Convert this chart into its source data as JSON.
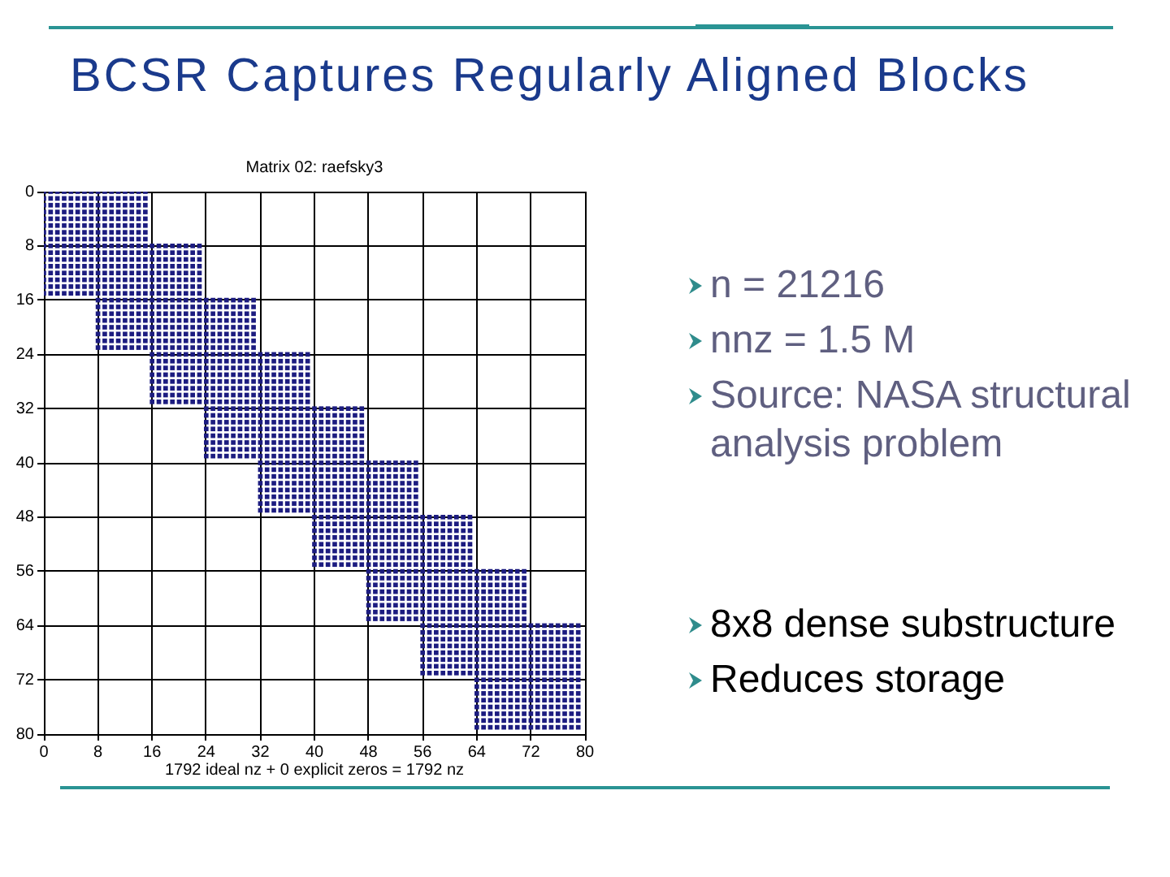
{
  "chart_data": {
    "type": "scatter",
    "title": "BCSR Captures Regularly Aligned Blocks",
    "subtitle": "Matrix 02: raefsky3",
    "xlabel": "1792 ideal nz + 0 explicit zeros = 1792 nz",
    "annotations": [
      "n = 21216",
      "nnz = 1.5 M",
      "Source: NASA structural analysis problem",
      "8x8 dense substructure",
      "Reduces storage"
    ],
    "color": "#1c1c80",
    "marker": "square",
    "grid": true,
    "xlim": [
      0,
      80
    ],
    "ylim": [
      80,
      0
    ],
    "xticks": [
      0,
      8,
      16,
      24,
      32,
      40,
      48,
      56,
      64,
      72,
      80
    ],
    "yticks": [
      0,
      8,
      16,
      24,
      32,
      40,
      48,
      56,
      64,
      72,
      80
    ],
    "x": [
      0,
      1,
      2,
      3,
      4,
      5,
      6,
      7,
      8,
      9,
      10,
      11,
      12,
      13,
      14,
      15,
      0,
      1,
      2,
      3,
      4,
      5,
      6,
      7,
      8,
      9,
      10,
      11,
      12,
      13,
      14,
      15,
      0,
      1,
      2,
      3,
      4,
      5,
      6,
      7,
      8,
      9,
      10,
      11,
      12,
      13,
      14,
      15,
      0,
      1,
      2,
      3,
      4,
      5,
      6,
      7,
      8,
      9,
      10,
      11,
      12,
      13,
      14,
      15,
      0,
      1,
      2,
      3,
      4,
      5,
      6,
      7,
      8,
      9,
      10,
      11,
      12,
      13,
      14,
      15,
      0,
      1,
      2,
      3,
      4,
      5,
      6,
      7,
      8,
      9,
      10,
      11,
      12,
      13,
      14,
      15,
      0,
      1,
      2,
      3,
      4,
      5,
      6,
      7,
      8,
      9,
      10,
      11,
      12,
      13,
      14,
      15,
      0,
      1,
      2,
      3,
      4,
      5,
      6,
      7,
      8,
      9,
      10,
      11,
      12,
      13,
      14,
      15,
      0,
      1,
      2,
      3,
      4,
      5,
      6,
      7,
      8,
      9,
      10,
      11,
      12,
      13,
      14,
      15,
      16,
      17,
      18,
      19,
      20,
      21,
      22,
      23,
      0,
      1,
      2,
      3,
      4,
      5,
      6,
      7,
      8,
      9,
      10,
      11,
      12,
      13,
      14,
      15,
      16,
      17,
      18,
      19,
      20,
      21,
      22,
      23,
      0,
      1,
      2,
      3,
      4,
      5,
      6,
      7,
      8,
      9,
      10,
      11,
      12,
      13,
      14,
      15,
      16,
      17,
      18,
      19,
      20,
      21,
      22,
      23,
      0,
      1,
      2,
      3,
      4,
      5,
      6,
      7,
      8,
      9,
      10,
      11,
      12,
      13,
      14,
      15,
      16,
      17,
      18,
      19,
      20,
      21,
      22,
      23,
      0,
      1,
      2,
      3,
      4,
      5,
      6,
      7,
      8,
      9,
      10,
      11,
      12,
      13,
      14,
      15,
      16,
      17,
      18,
      19,
      20,
      21,
      22,
      23,
      0,
      1,
      2,
      3,
      4,
      5,
      6,
      7,
      8,
      9,
      10,
      11,
      12,
      13,
      14,
      15,
      16,
      17,
      18,
      19,
      20,
      21,
      22,
      23,
      0,
      1,
      2,
      3,
      4,
      5,
      6,
      7,
      8,
      9,
      10,
      11,
      12,
      13,
      14,
      15,
      16,
      17,
      18,
      19,
      20,
      21,
      22,
      23,
      0,
      1,
      2,
      3,
      4,
      5,
      6,
      7,
      8,
      9,
      10,
      11,
      12,
      13,
      14,
      15,
      16,
      17,
      18,
      19,
      20,
      21,
      22,
      23,
      8,
      9,
      10,
      11,
      12,
      13,
      14,
      15,
      16,
      17,
      18,
      19,
      20,
      21,
      22,
      23,
      24,
      25,
      26,
      27,
      28,
      29,
      30,
      31,
      8,
      9,
      10,
      11,
      12,
      13,
      14,
      15,
      16,
      17,
      18,
      19,
      20,
      21,
      22,
      23,
      24,
      25,
      26,
      27,
      28,
      29,
      30,
      31,
      8,
      9,
      10,
      11,
      12,
      13,
      14,
      15,
      16,
      17,
      18,
      19,
      20,
      21,
      22,
      23,
      24,
      25,
      26,
      27,
      28,
      29,
      30,
      31,
      8,
      9,
      10,
      11,
      12,
      13,
      14,
      15,
      16,
      17,
      18,
      19,
      20,
      21,
      22,
      23,
      24,
      25,
      26,
      27,
      28,
      29,
      30,
      31,
      8,
      9,
      10,
      11,
      12,
      13,
      14,
      15,
      16,
      17,
      18,
      19,
      20,
      21,
      22,
      23,
      24,
      25,
      26,
      27,
      28,
      29,
      30,
      31,
      8,
      9,
      10,
      11,
      12,
      13,
      14,
      15,
      16,
      17,
      18,
      19,
      20,
      21,
      22,
      23,
      24,
      25,
      26,
      27,
      28,
      29,
      30,
      31,
      8,
      9,
      10,
      11,
      12,
      13,
      14,
      15,
      16,
      17,
      18,
      19,
      20,
      21,
      22,
      23,
      24,
      25,
      26,
      27,
      28,
      29,
      30,
      31,
      8,
      9,
      10,
      11,
      12,
      13,
      14,
      15,
      16,
      17,
      18,
      19,
      20,
      21,
      22,
      23,
      24,
      25,
      26,
      27,
      28,
      29,
      30,
      31,
      16,
      17,
      18,
      19,
      20,
      21,
      22,
      23,
      24,
      25,
      26,
      27,
      28,
      29,
      30,
      31,
      32,
      33,
      34,
      35,
      36,
      37,
      38,
      39,
      16,
      17,
      18,
      19,
      20,
      21,
      22,
      23,
      24,
      25,
      26,
      27,
      28,
      29,
      30,
      31,
      32,
      33,
      34,
      35,
      36,
      37,
      38,
      39,
      16,
      17,
      18,
      19,
      20,
      21,
      22,
      23,
      24,
      25,
      26,
      27,
      28,
      29,
      30,
      31,
      32,
      33,
      34,
      35,
      36,
      37,
      38,
      39,
      16,
      17,
      18,
      19,
      20,
      21,
      22,
      23,
      24,
      25,
      26,
      27,
      28,
      29,
      30,
      31,
      32,
      33,
      34,
      35,
      36,
      37,
      38,
      39,
      16,
      17,
      18,
      19,
      20,
      21,
      22,
      23,
      24,
      25,
      26,
      27,
      28,
      29,
      30,
      31,
      32,
      33,
      34,
      35,
      36,
      37,
      38,
      39,
      16,
      17,
      18,
      19,
      20,
      21,
      22,
      23,
      24,
      25,
      26,
      27,
      28,
      29,
      30,
      31,
      32,
      33,
      34,
      35,
      36,
      37,
      38,
      39,
      16,
      17,
      18,
      19,
      20,
      21,
      22,
      23,
      24,
      25,
      26,
      27,
      28,
      29,
      30,
      31,
      32,
      33,
      34,
      35,
      36,
      37,
      38,
      39,
      16,
      17,
      18,
      19,
      20,
      21,
      22,
      23,
      24,
      25,
      26,
      27,
      28,
      29,
      30,
      31,
      32,
      33,
      34,
      35,
      36,
      37,
      38,
      39,
      24,
      25,
      26,
      27,
      28,
      29,
      30,
      31,
      32,
      33,
      34,
      35,
      36,
      37,
      38,
      39,
      40,
      41,
      42,
      43,
      44,
      45,
      46,
      47,
      24,
      25,
      26,
      27,
      28,
      29,
      30,
      31,
      32,
      33,
      34,
      35,
      36,
      37,
      38,
      39,
      40,
      41,
      42,
      43,
      44,
      45,
      46,
      47,
      24,
      25,
      26,
      27,
      28,
      29,
      30,
      31,
      32,
      33,
      34,
      35,
      36,
      37,
      38,
      39,
      40,
      41,
      42,
      43,
      44,
      45,
      46,
      47,
      24,
      25,
      26,
      27,
      28,
      29,
      30,
      31,
      32,
      33,
      34,
      35,
      36,
      37,
      38,
      39,
      40,
      41,
      42,
      43,
      44,
      45,
      46,
      47,
      24,
      25,
      26,
      27,
      28,
      29,
      30,
      31,
      32,
      33,
      34,
      35,
      36,
      37,
      38,
      39,
      40,
      41,
      42,
      43,
      44,
      45,
      46,
      47,
      24,
      25,
      26,
      27,
      28,
      29,
      30,
      31,
      32,
      33,
      34,
      35,
      36,
      37,
      38,
      39,
      40,
      41,
      42,
      43,
      44,
      45,
      46,
      47,
      24,
      25,
      26,
      27,
      28,
      29,
      30,
      31,
      32,
      33,
      34,
      35,
      36,
      37,
      38,
      39,
      40,
      41,
      42,
      43,
      44,
      45,
      46,
      47,
      24,
      25,
      26,
      27,
      28,
      29,
      30,
      31,
      32,
      33,
      34,
      35,
      36,
      37,
      38,
      39,
      40,
      41,
      42,
      43,
      44,
      45,
      46,
      47,
      32,
      33,
      34,
      35,
      36,
      37,
      38,
      39,
      40,
      41,
      42,
      43,
      44,
      45,
      46,
      47,
      48,
      49,
      50,
      51,
      52,
      53,
      54,
      55,
      32,
      33,
      34,
      35,
      36,
      37,
      38,
      39,
      40,
      41,
      42,
      43,
      44,
      45,
      46,
      47,
      48,
      49,
      50,
      51,
      52,
      53,
      54,
      55,
      32,
      33,
      34,
      35,
      36,
      37,
      38,
      39,
      40,
      41,
      42,
      43,
      44,
      45,
      46,
      47,
      48,
      49,
      50,
      51,
      52,
      53,
      54,
      55,
      32,
      33,
      34,
      35,
      36,
      37,
      38,
      39,
      40,
      41,
      42,
      43,
      44,
      45,
      46,
      47,
      48,
      49,
      50,
      51,
      52,
      53,
      54,
      55,
      32,
      33,
      34,
      35,
      36,
      37,
      38,
      39,
      40,
      41,
      42,
      43,
      44,
      45,
      46,
      47,
      48,
      49,
      50,
      51,
      52,
      53,
      54,
      55,
      32,
      33,
      34,
      35,
      36,
      37,
      38,
      39,
      40,
      41,
      42,
      43,
      44,
      45,
      46,
      47,
      48,
      49,
      50,
      51,
      52,
      53,
      54,
      55,
      32,
      33,
      34,
      35,
      36,
      37,
      38,
      39,
      40,
      41,
      42,
      43,
      44,
      45,
      46,
      47,
      48,
      49,
      50,
      51,
      52,
      53,
      54,
      55,
      32,
      33,
      34,
      35,
      36,
      37,
      38,
      39,
      40,
      41,
      42,
      43,
      44,
      45,
      46,
      47,
      48,
      49,
      50,
      51,
      52,
      53,
      54,
      55,
      40,
      41,
      42,
      43,
      44,
      45,
      46,
      47,
      48,
      49,
      50,
      51,
      52,
      53,
      54,
      55,
      56,
      57,
      58,
      59,
      60,
      61,
      62,
      63,
      40,
      41,
      42,
      43,
      44,
      45,
      46,
      47,
      48,
      49,
      50,
      51,
      52,
      53,
      54,
      55,
      56,
      57,
      58,
      59,
      60,
      61,
      62,
      63,
      40,
      41,
      42,
      43,
      44,
      45,
      46,
      47,
      48,
      49,
      50,
      51,
      52,
      53,
      54,
      55,
      56,
      57,
      58,
      59,
      60,
      61,
      62,
      63,
      40,
      41,
      42,
      43,
      44,
      45,
      46,
      47,
      48,
      49,
      50,
      51,
      52,
      53,
      54,
      55,
      56,
      57,
      58,
      59,
      60,
      61,
      62,
      63,
      40,
      41,
      42,
      43,
      44,
      45,
      46,
      47,
      48,
      49,
      50,
      51,
      52,
      53,
      54,
      55,
      56,
      57,
      58,
      59,
      60,
      61,
      62,
      63,
      40,
      41,
      42,
      43,
      44,
      45,
      46,
      47,
      48,
      49,
      50,
      51,
      52,
      53,
      54,
      55,
      56,
      57,
      58,
      59,
      60,
      61,
      62,
      63,
      40,
      41,
      42,
      43,
      44,
      45,
      46,
      47,
      48,
      49,
      50,
      51,
      52,
      53,
      54,
      55,
      56,
      57,
      58,
      59,
      60,
      61,
      62,
      63,
      40,
      41,
      42,
      43,
      44,
      45,
      46,
      47,
      48,
      49,
      50,
      51,
      52,
      53,
      54,
      55,
      56,
      57,
      58,
      59,
      60,
      61,
      62,
      63,
      48,
      49,
      50,
      51,
      52,
      53,
      54,
      55,
      56,
      57,
      58,
      59,
      60,
      61,
      62,
      63,
      64,
      65,
      66,
      67,
      68,
      69,
      70,
      71,
      48,
      49,
      50,
      51,
      52,
      53,
      54,
      55,
      56,
      57,
      58,
      59,
      60,
      61,
      62,
      63,
      64,
      65,
      66,
      67,
      68,
      69,
      70,
      71,
      48,
      49,
      50,
      51,
      52,
      53,
      54,
      55,
      56,
      57,
      58,
      59,
      60,
      61,
      62,
      63,
      64,
      65,
      66,
      67,
      68,
      69,
      70,
      71,
      48,
      49,
      50,
      51,
      52,
      53,
      54,
      55,
      56,
      57,
      58,
      59,
      60,
      61,
      62,
      63,
      64,
      65,
      66,
      67,
      68,
      69,
      70,
      71,
      48,
      49,
      50,
      51,
      52,
      53,
      54,
      55,
      56,
      57,
      58,
      59,
      60,
      61,
      62,
      63,
      64,
      65,
      66,
      67,
      68,
      69,
      70,
      71,
      48,
      49,
      50,
      51,
      52,
      53,
      54,
      55,
      56,
      57,
      58,
      59,
      60,
      61,
      62,
      63,
      64,
      65,
      66,
      67,
      68,
      69,
      70,
      71,
      48,
      49,
      50,
      51,
      52,
      53,
      54,
      55,
      56,
      57,
      58,
      59,
      60,
      61,
      62,
      63,
      64,
      65,
      66,
      67,
      68,
      69,
      70,
      71,
      48,
      49,
      50,
      51,
      52,
      53,
      54,
      55,
      56,
      57,
      58,
      59,
      60,
      61,
      62,
      63,
      64,
      65,
      66,
      67,
      68,
      69,
      70,
      71,
      56,
      57,
      58,
      59,
      60,
      61,
      62,
      63,
      64,
      65,
      66,
      67,
      68,
      69,
      70,
      71,
      72,
      73,
      74,
      75,
      76,
      77,
      78,
      79,
      56,
      57,
      58,
      59,
      60,
      61,
      62,
      63,
      64,
      65,
      66,
      67,
      68,
      69,
      70,
      71,
      72,
      73,
      74,
      75,
      76,
      77,
      78,
      79,
      56,
      57,
      58,
      59,
      60,
      61,
      62,
      63,
      64,
      65,
      66,
      67,
      68,
      69,
      70,
      71,
      72,
      73,
      74,
      75,
      76,
      77,
      78,
      79,
      56,
      57,
      58,
      59,
      60,
      61,
      62,
      63,
      64,
      65,
      66,
      67,
      68,
      69,
      70,
      71,
      72,
      73,
      74,
      75,
      76,
      77,
      78,
      79,
      56,
      57,
      58,
      59,
      60,
      61,
      62,
      63,
      64,
      65,
      66,
      67,
      68,
      69,
      70,
      71,
      72,
      73,
      74,
      75,
      76,
      77,
      78,
      79,
      56,
      57,
      58,
      59,
      60,
      61,
      62,
      63,
      64,
      65,
      66,
      67,
      68,
      69,
      70,
      71,
      72,
      73,
      74,
      75,
      76,
      77,
      78,
      79,
      56,
      57,
      58,
      59,
      60,
      61,
      62,
      63,
      64,
      65,
      66,
      67,
      68,
      69,
      70,
      71,
      72,
      73,
      74,
      75,
      76,
      77,
      78,
      79,
      56,
      57,
      58,
      59,
      60,
      61,
      62,
      63,
      64,
      65,
      66,
      67,
      68,
      69,
      70,
      71,
      72,
      73,
      74,
      75,
      76,
      77,
      78,
      79,
      64,
      65,
      66,
      67,
      68,
      69,
      70,
      71,
      72,
      73,
      74,
      75,
      76,
      77,
      78,
      79,
      64,
      65,
      66,
      67,
      68,
      69,
      70,
      71,
      72,
      73,
      74,
      75,
      76,
      77,
      78,
      79,
      64,
      65,
      66,
      67,
      68,
      69,
      70,
      71,
      72,
      73,
      74,
      75,
      76,
      77,
      78,
      79,
      64,
      65,
      66,
      67,
      68,
      69,
      70,
      71,
      72,
      73,
      74,
      75,
      76,
      77,
      78,
      79,
      64,
      65,
      66,
      67,
      68,
      69,
      70,
      71,
      72,
      73,
      74,
      75,
      76,
      77,
      78,
      79,
      64,
      65,
      66,
      67,
      68,
      69,
      70,
      71,
      72,
      73,
      74,
      75,
      76,
      77,
      78,
      79,
      64,
      65,
      66,
      67,
      68,
      69,
      70,
      71,
      72,
      73,
      74,
      75,
      76,
      77,
      78,
      79,
      64,
      65,
      66,
      67,
      68,
      69,
      70,
      71,
      72,
      73,
      74,
      75,
      76,
      77,
      78,
      79
    ],
    "values": [
      0,
      0,
      0,
      0,
      0,
      0,
      0,
      0,
      0,
      0,
      0,
      0,
      0,
      0,
      0,
      0,
      1,
      1,
      1,
      1,
      1,
      1,
      1,
      1,
      1,
      1,
      1,
      1,
      1,
      1,
      1,
      1,
      2,
      2,
      2,
      2,
      2,
      2,
      2,
      2,
      2,
      2,
      2,
      2,
      2,
      2,
      2,
      2,
      3,
      3,
      3,
      3,
      3,
      3,
      3,
      3,
      3,
      3,
      3,
      3,
      3,
      3,
      3,
      3,
      4,
      4,
      4,
      4,
      4,
      4,
      4,
      4,
      4,
      4,
      4,
      4,
      4,
      4,
      4,
      4,
      5,
      5,
      5,
      5,
      5,
      5,
      5,
      5,
      5,
      5,
      5,
      5,
      5,
      5,
      5,
      5,
      6,
      6,
      6,
      6,
      6,
      6,
      6,
      6,
      6,
      6,
      6,
      6,
      6,
      6,
      6,
      6,
      7,
      7,
      7,
      7,
      7,
      7,
      7,
      7,
      7,
      7,
      7,
      7,
      7,
      7,
      7,
      7,
      8,
      8,
      8,
      8,
      8,
      8,
      8,
      8,
      8,
      8,
      8,
      8,
      8,
      8,
      8,
      8,
      8,
      8,
      8,
      8,
      8,
      8,
      8,
      8,
      9,
      9,
      9,
      9,
      9,
      9,
      9,
      9,
      9,
      9,
      9,
      9,
      9,
      9,
      9,
      9,
      9,
      9,
      9,
      9,
      9,
      9,
      9,
      9,
      10,
      10,
      10,
      10,
      10,
      10,
      10,
      10,
      10,
      10,
      10,
      10,
      10,
      10,
      10,
      10,
      10,
      10,
      10,
      10,
      10,
      10,
      10,
      10,
      11,
      11,
      11,
      11,
      11,
      11,
      11,
      11,
      11,
      11,
      11,
      11,
      11,
      11,
      11,
      11,
      11,
      11,
      11,
      11,
      11,
      11,
      11,
      11,
      12,
      12,
      12,
      12,
      12,
      12,
      12,
      12,
      12,
      12,
      12,
      12,
      12,
      12,
      12,
      12,
      12,
      12,
      12,
      12,
      12,
      12,
      12,
      12,
      13,
      13,
      13,
      13,
      13,
      13,
      13,
      13,
      13,
      13,
      13,
      13,
      13,
      13,
      13,
      13,
      13,
      13,
      13,
      13,
      13,
      13,
      13,
      13,
      14,
      14,
      14,
      14,
      14,
      14,
      14,
      14,
      14,
      14,
      14,
      14,
      14,
      14,
      14,
      14,
      14,
      14,
      14,
      14,
      14,
      14,
      14,
      14,
      15,
      15,
      15,
      15,
      15,
      15,
      15,
      15,
      15,
      15,
      15,
      15,
      15,
      15,
      15,
      15,
      15,
      15,
      15,
      15,
      15,
      15,
      15,
      15,
      16,
      16,
      16,
      16,
      16,
      16,
      16,
      16,
      16,
      16,
      16,
      16,
      16,
      16,
      16,
      16,
      16,
      16,
      16,
      16,
      16,
      16,
      16,
      16,
      17,
      17,
      17,
      17,
      17,
      17,
      17,
      17,
      17,
      17,
      17,
      17,
      17,
      17,
      17,
      17,
      17,
      17,
      17,
      17,
      17,
      17,
      17,
      17,
      18,
      18,
      18,
      18,
      18,
      18,
      18,
      18,
      18,
      18,
      18,
      18,
      18,
      18,
      18,
      18,
      18,
      18,
      18,
      18,
      18,
      18,
      18,
      18,
      19,
      19,
      19,
      19,
      19,
      19,
      19,
      19,
      19,
      19,
      19,
      19,
      19,
      19,
      19,
      19,
      19,
      19,
      19,
      19,
      19,
      19,
      19,
      19,
      20,
      20,
      20,
      20,
      20,
      20,
      20,
      20,
      20,
      20,
      20,
      20,
      20,
      20,
      20,
      20,
      20,
      20,
      20,
      20,
      20,
      20,
      20,
      20,
      21,
      21,
      21,
      21,
      21,
      21,
      21,
      21,
      21,
      21,
      21,
      21,
      21,
      21,
      21,
      21,
      21,
      21,
      21,
      21,
      21,
      21,
      21,
      21,
      22,
      22,
      22,
      22,
      22,
      22,
      22,
      22,
      22,
      22,
      22,
      22,
      22,
      22,
      22,
      22,
      22,
      22,
      22,
      22,
      22,
      22,
      22,
      22,
      23,
      23,
      23,
      23,
      23,
      23,
      23,
      23,
      23,
      23,
      23,
      23,
      23,
      23,
      23,
      23,
      23,
      23,
      23,
      23,
      23,
      23,
      23,
      23,
      24,
      24,
      24,
      24,
      24,
      24,
      24,
      24,
      24,
      24,
      24,
      24,
      24,
      24,
      24,
      24,
      24,
      24,
      24,
      24,
      24,
      24,
      24,
      24,
      25,
      25,
      25,
      25,
      25,
      25,
      25,
      25,
      25,
      25,
      25,
      25,
      25,
      25,
      25,
      25,
      25,
      25,
      25,
      25,
      25,
      25,
      25,
      25,
      26,
      26,
      26,
      26,
      26,
      26,
      26,
      26,
      26,
      26,
      26,
      26,
      26,
      26,
      26,
      26,
      26,
      26,
      26,
      26,
      26,
      26,
      26,
      26,
      27,
      27,
      27,
      27,
      27,
      27,
      27,
      27,
      27,
      27,
      27,
      27,
      27,
      27,
      27,
      27,
      27,
      27,
      27,
      27,
      27,
      27,
      27,
      27,
      28,
      28,
      28,
      28,
      28,
      28,
      28,
      28,
      28,
      28,
      28,
      28,
      28,
      28,
      28,
      28,
      28,
      28,
      28,
      28,
      28,
      28,
      28,
      28,
      29,
      29,
      29,
      29,
      29,
      29,
      29,
      29,
      29,
      29,
      29,
      29,
      29,
      29,
      29,
      29,
      29,
      29,
      29,
      29,
      29,
      29,
      29,
      29,
      30,
      30,
      30,
      30,
      30,
      30,
      30,
      30,
      30,
      30,
      30,
      30,
      30,
      30,
      30,
      30,
      30,
      30,
      30,
      30,
      30,
      30,
      30,
      30,
      31,
      31,
      31,
      31,
      31,
      31,
      31,
      31,
      31,
      31,
      31,
      31,
      31,
      31,
      31,
      31,
      31,
      31,
      31,
      31,
      31,
      31,
      31,
      31,
      32,
      32,
      32,
      32,
      32,
      32,
      32,
      32,
      32,
      32,
      32,
      32,
      32,
      32,
      32,
      32,
      32,
      32,
      32,
      32,
      32,
      32,
      32,
      32,
      33,
      33,
      33,
      33,
      33,
      33,
      33,
      33,
      33,
      33,
      33,
      33,
      33,
      33,
      33,
      33,
      33,
      33,
      33,
      33,
      33,
      33,
      33,
      33,
      34,
      34,
      34,
      34,
      34,
      34,
      34,
      34,
      34,
      34,
      34,
      34,
      34,
      34,
      34,
      34,
      34,
      34,
      34,
      34,
      34,
      34,
      34,
      34,
      35,
      35,
      35,
      35,
      35,
      35,
      35,
      35,
      35,
      35,
      35,
      35,
      35,
      35,
      35,
      35,
      35,
      35,
      35,
      35,
      35,
      35,
      35,
      35,
      36,
      36,
      36,
      36,
      36,
      36,
      36,
      36,
      36,
      36,
      36,
      36,
      36,
      36,
      36,
      36,
      36,
      36,
      36,
      36,
      36,
      36,
      36,
      36,
      37,
      37,
      37,
      37,
      37,
      37,
      37,
      37,
      37,
      37,
      37,
      37,
      37,
      37,
      37,
      37,
      37,
      37,
      37,
      37,
      37,
      37,
      37,
      37,
      38,
      38,
      38,
      38,
      38,
      38,
      38,
      38,
      38,
      38,
      38,
      38,
      38,
      38,
      38,
      38,
      38,
      38,
      38,
      38,
      38,
      38,
      38,
      38,
      39,
      39,
      39,
      39,
      39,
      39,
      39,
      39,
      39,
      39,
      39,
      39,
      39,
      39,
      39,
      39,
      39,
      39,
      39,
      39,
      39,
      39,
      39,
      39,
      40,
      40,
      40,
      40,
      40,
      40,
      40,
      40,
      40,
      40,
      40,
      40,
      40,
      40,
      40,
      40,
      40,
      40,
      40,
      40,
      40,
      40,
      40,
      40,
      41,
      41,
      41,
      41,
      41,
      41,
      41,
      41,
      41,
      41,
      41,
      41,
      41,
      41,
      41,
      41,
      41,
      41,
      41,
      41,
      41,
      41,
      41,
      41,
      42,
      42,
      42,
      42,
      42,
      42,
      42,
      42,
      42,
      42,
      42,
      42,
      42,
      42,
      42,
      42,
      42,
      42,
      42,
      42,
      42,
      42,
      42,
      42,
      43,
      43,
      43,
      43,
      43,
      43,
      43,
      43,
      43,
      43,
      43,
      43,
      43,
      43,
      43,
      43,
      43,
      43,
      43,
      43,
      43,
      43,
      43,
      43,
      44,
      44,
      44,
      44,
      44,
      44,
      44,
      44,
      44,
      44,
      44,
      44,
      44,
      44,
      44,
      44,
      44,
      44,
      44,
      44,
      44,
      44,
      44,
      44,
      45,
      45,
      45,
      45,
      45,
      45,
      45,
      45,
      45,
      45,
      45,
      45,
      45,
      45,
      45,
      45,
      45,
      45,
      45,
      45,
      45,
      45,
      45,
      45,
      46,
      46,
      46,
      46,
      46,
      46,
      46,
      46,
      46,
      46,
      46,
      46,
      46,
      46,
      46,
      46,
      46,
      46,
      46,
      46,
      46,
      46,
      46,
      46,
      47,
      47,
      47,
      47,
      47,
      47,
      47,
      47,
      47,
      47,
      47,
      47,
      47,
      47,
      47,
      47,
      47,
      47,
      47,
      47,
      47,
      47,
      47,
      47,
      48,
      48,
      48,
      48,
      48,
      48,
      48,
      48,
      48,
      48,
      48,
      48,
      48,
      48,
      48,
      48,
      48,
      48,
      48,
      48,
      48,
      48,
      48,
      48,
      49,
      49,
      49,
      49,
      49,
      49,
      49,
      49,
      49,
      49,
      49,
      49,
      49,
      49,
      49,
      49,
      49,
      49,
      49,
      49,
      49,
      49,
      49,
      49,
      50,
      50,
      50,
      50,
      50,
      50,
      50,
      50,
      50,
      50,
      50,
      50,
      50,
      50,
      50,
      50,
      50,
      50,
      50,
      50,
      50,
      50,
      50,
      50,
      51,
      51,
      51,
      51,
      51,
      51,
      51,
      51,
      51,
      51,
      51,
      51,
      51,
      51,
      51,
      51,
      51,
      51,
      51,
      51,
      51,
      51,
      51,
      51,
      52,
      52,
      52,
      52,
      52,
      52,
      52,
      52,
      52,
      52,
      52,
      52,
      52,
      52,
      52,
      52,
      52,
      52,
      52,
      52,
      52,
      52,
      52,
      52,
      53,
      53,
      53,
      53,
      53,
      53,
      53,
      53,
      53,
      53,
      53,
      53,
      53,
      53,
      53,
      53,
      53,
      53,
      53,
      53,
      53,
      53,
      53,
      53,
      54,
      54,
      54,
      54,
      54,
      54,
      54,
      54,
      54,
      54,
      54,
      54,
      54,
      54,
      54,
      54,
      54,
      54,
      54,
      54,
      54,
      54,
      54,
      54,
      55,
      55,
      55,
      55,
      55,
      55,
      55,
      55,
      55,
      55,
      55,
      55,
      55,
      55,
      55,
      55,
      55,
      55,
      55,
      55,
      55,
      55,
      55,
      55,
      56,
      56,
      56,
      56,
      56,
      56,
      56,
      56,
      56,
      56,
      56,
      56,
      56,
      56,
      56,
      56,
      56,
      56,
      56,
      56,
      56,
      56,
      56,
      56,
      57,
      57,
      57,
      57,
      57,
      57,
      57,
      57,
      57,
      57,
      57,
      57,
      57,
      57,
      57,
      57,
      57,
      57,
      57,
      57,
      57,
      57,
      57,
      57,
      58,
      58,
      58,
      58,
      58,
      58,
      58,
      58,
      58,
      58,
      58,
      58,
      58,
      58,
      58,
      58,
      58,
      58,
      58,
      58,
      58,
      58,
      58,
      58,
      59,
      59,
      59,
      59,
      59,
      59,
      59,
      59,
      59,
      59,
      59,
      59,
      59,
      59,
      59,
      59,
      59,
      59,
      59,
      59,
      59,
      59,
      59,
      59,
      60,
      60,
      60,
      60,
      60,
      60,
      60,
      60,
      60,
      60,
      60,
      60,
      60,
      60,
      60,
      60,
      60,
      60,
      60,
      60,
      60,
      60,
      60,
      60,
      61,
      61,
      61,
      61,
      61,
      61,
      61,
      61,
      61,
      61,
      61,
      61,
      61,
      61,
      61,
      61,
      61,
      61,
      61,
      61,
      61,
      61,
      61,
      61,
      62,
      62,
      62,
      62,
      62,
      62,
      62,
      62,
      62,
      62,
      62,
      62,
      62,
      62,
      62,
      62,
      62,
      62,
      62,
      62,
      62,
      62,
      62,
      62,
      63,
      63,
      63,
      63,
      63,
      63,
      63,
      63,
      63,
      63,
      63,
      63,
      63,
      63,
      63,
      63,
      63,
      63,
      63,
      63,
      63,
      63,
      63,
      63,
      64,
      64,
      64,
      64,
      64,
      64,
      64,
      64,
      64,
      64,
      64,
      64,
      64,
      64,
      64,
      64,
      64,
      64,
      64,
      64,
      64,
      64,
      64,
      64,
      65,
      65,
      65,
      65,
      65,
      65,
      65,
      65,
      65,
      65,
      65,
      65,
      65,
      65,
      65,
      65,
      65,
      65,
      65,
      65,
      65,
      65,
      65,
      65,
      66,
      66,
      66,
      66,
      66,
      66,
      66,
      66,
      66,
      66,
      66,
      66,
      66,
      66,
      66,
      66,
      66,
      66,
      66,
      66,
      66,
      66,
      66,
      66,
      67,
      67,
      67,
      67,
      67,
      67,
      67,
      67,
      67,
      67,
      67,
      67,
      67,
      67,
      67,
      67,
      67,
      67,
      67,
      67,
      67,
      67,
      67,
      67,
      68,
      68,
      68,
      68,
      68,
      68,
      68,
      68,
      68,
      68,
      68,
      68,
      68,
      68,
      68,
      68,
      68,
      68,
      68,
      68,
      68,
      68,
      68,
      68,
      69,
      69,
      69,
      69,
      69,
      69,
      69,
      69,
      69,
      69,
      69,
      69,
      69,
      69,
      69,
      69,
      69,
      69,
      69,
      69,
      69,
      69,
      69,
      69,
      70,
      70,
      70,
      70,
      70,
      70,
      70,
      70,
      70,
      70,
      70,
      70,
      70,
      70,
      70,
      70,
      70,
      70,
      70,
      70,
      70,
      70,
      70,
      70,
      71,
      71,
      71,
      71,
      71,
      71,
      71,
      71,
      71,
      71,
      71,
      71,
      71,
      71,
      71,
      71,
      71,
      71,
      71,
      71,
      71,
      71,
      71,
      71,
      72,
      72,
      72,
      72,
      72,
      72,
      72,
      72,
      72,
      72,
      72,
      72,
      72,
      72,
      72,
      72,
      73,
      73,
      73,
      73,
      73,
      73,
      73,
      73,
      73,
      73,
      73,
      73,
      73,
      73,
      73,
      73,
      74,
      74,
      74,
      74,
      74,
      74,
      74,
      74,
      74,
      74,
      74,
      74,
      74,
      74,
      74,
      74,
      75,
      75,
      75,
      75,
      75,
      75,
      75,
      75,
      75,
      75,
      75,
      75,
      75,
      75,
      75,
      75,
      76,
      76,
      76,
      76,
      76,
      76,
      76,
      76,
      76,
      76,
      76,
      76,
      76,
      76,
      76,
      76,
      77,
      77,
      77,
      77,
      77,
      77,
      77,
      77,
      77,
      77,
      77,
      77,
      77,
      77,
      77,
      77,
      78,
      78,
      78,
      78,
      78,
      78,
      78,
      78,
      78,
      78,
      78,
      78,
      78,
      78,
      78,
      78,
      79,
      79,
      79,
      79,
      79,
      79,
      79,
      79,
      79,
      79,
      79,
      79,
      79,
      79,
      79,
      79
    ]
  }
}
